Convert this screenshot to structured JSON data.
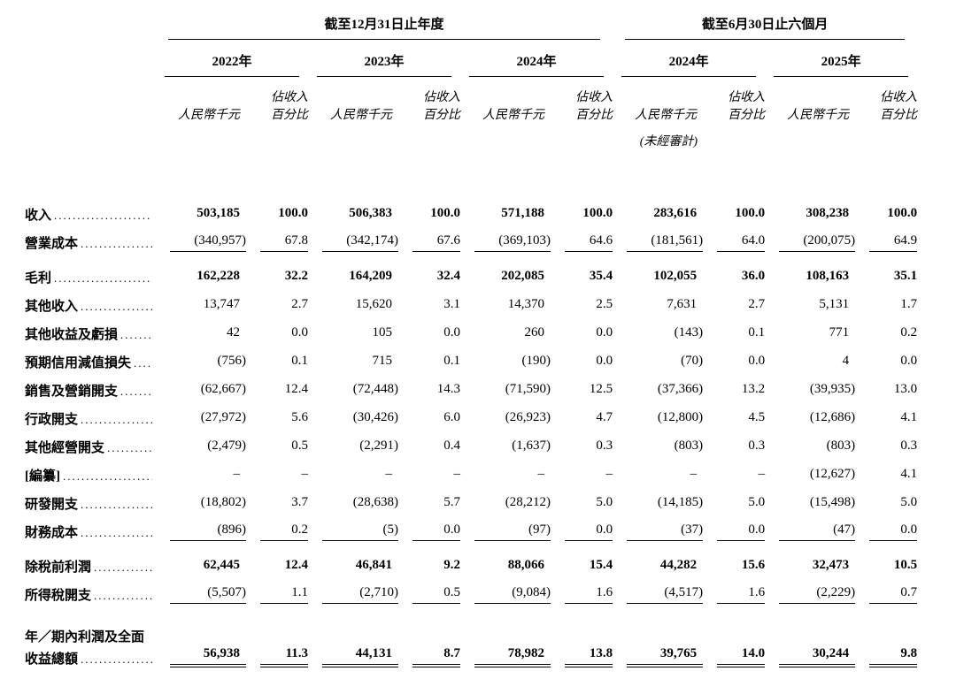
{
  "page": {
    "background": "#ffffff",
    "text_color": "#000000"
  },
  "table": {
    "period_groups": [
      {
        "label": "截至12月31日止年度"
      },
      {
        "label": "截至6月30日止六個月"
      }
    ],
    "years": [
      "2022年",
      "2023年",
      "2024年",
      "2024年",
      "2025年"
    ],
    "unaudited_note": "(未經審計)",
    "col_headers": {
      "amount": "人民幣千元",
      "pct_line1": "佔收入",
      "pct_line2": "百分比"
    },
    "leader_dots": "........................................",
    "rows": [
      {
        "label": "收入",
        "bold": true,
        "values": [
          "503,185",
          "100.0",
          "506,383",
          "100.0",
          "571,188",
          "100.0",
          "283,616",
          "100.0",
          "308,238",
          "100.0"
        ]
      },
      {
        "label": "營業成本",
        "rule": "single",
        "values": [
          "(340,957)",
          "67.8",
          "(342,174)",
          "67.6",
          "(369,103)",
          "64.6",
          "(181,561)",
          "64.0",
          "(200,075)",
          "64.9"
        ]
      },
      {
        "label": "毛利",
        "bold": true,
        "gap_before": 7,
        "values": [
          "162,228",
          "32.2",
          "164,209",
          "32.4",
          "202,085",
          "35.4",
          "102,055",
          "36.0",
          "108,163",
          "35.1"
        ]
      },
      {
        "label": "其他收入",
        "values": [
          "13,747",
          "2.7",
          "15,620",
          "3.1",
          "14,370",
          "2.5",
          "7,631",
          "2.7",
          "5,131",
          "1.7"
        ]
      },
      {
        "label": "其他收益及虧損",
        "values": [
          "42",
          "0.0",
          "105",
          "0.0",
          "260",
          "0.0",
          "(143)",
          "0.1",
          "771",
          "0.2"
        ]
      },
      {
        "label": "預期信用減值損失",
        "values": [
          "(756)",
          "0.1",
          "715",
          "0.1",
          "(190)",
          "0.0",
          "(70)",
          "0.0",
          "4",
          "0.0"
        ]
      },
      {
        "label": "銷售及營銷開支",
        "values": [
          "(62,667)",
          "12.4",
          "(72,448)",
          "14.3",
          "(71,590)",
          "12.5",
          "(37,366)",
          "13.2",
          "(39,935)",
          "13.0"
        ]
      },
      {
        "label": "行政開支",
        "values": [
          "(27,972)",
          "5.6",
          "(30,426)",
          "6.0",
          "(26,923)",
          "4.7",
          "(12,800)",
          "4.5",
          "(12,686)",
          "4.1"
        ]
      },
      {
        "label": "其他經營開支",
        "values": [
          "(2,479)",
          "0.5",
          "(2,291)",
          "0.4",
          "(1,637)",
          "0.3",
          "(803)",
          "0.3",
          "(803)",
          "0.3"
        ]
      },
      {
        "label": "[編纂]",
        "values": [
          "–",
          "–",
          "–",
          "–",
          "–",
          "–",
          "–",
          "–",
          "(12,627)",
          "4.1"
        ]
      },
      {
        "label": "研發開支",
        "values": [
          "(18,802)",
          "3.7",
          "(28,638)",
          "5.7",
          "(28,212)",
          "5.0",
          "(14,185)",
          "5.0",
          "(15,498)",
          "5.0"
        ]
      },
      {
        "label": "財務成本",
        "rule": "single",
        "values": [
          "(896)",
          "0.2",
          "(5)",
          "0.0",
          "(97)",
          "0.0",
          "(37)",
          "0.0",
          "(47)",
          "0.0"
        ]
      },
      {
        "label": "除稅前利潤",
        "bold": true,
        "gap_before": 7,
        "values": [
          "62,445",
          "12.4",
          "46,841",
          "9.2",
          "88,066",
          "15.4",
          "44,282",
          "15.6",
          "32,473",
          "10.5"
        ]
      },
      {
        "label": "所得稅開支",
        "rule": "single",
        "values": [
          "(5,507)",
          "1.1",
          "(2,710)",
          "0.5",
          "(9,084)",
          "1.6",
          "(4,517)",
          "1.6",
          "(2,229)",
          "0.7"
        ]
      },
      {
        "label": "年／期內利潤及全面",
        "label2": "收益總額",
        "bold": true,
        "rule": "double",
        "gap_before": 10,
        "values": [
          "56,938",
          "11.3",
          "44,131",
          "8.7",
          "78,982",
          "13.8",
          "39,765",
          "14.0",
          "30,244",
          "9.8"
        ]
      }
    ]
  }
}
